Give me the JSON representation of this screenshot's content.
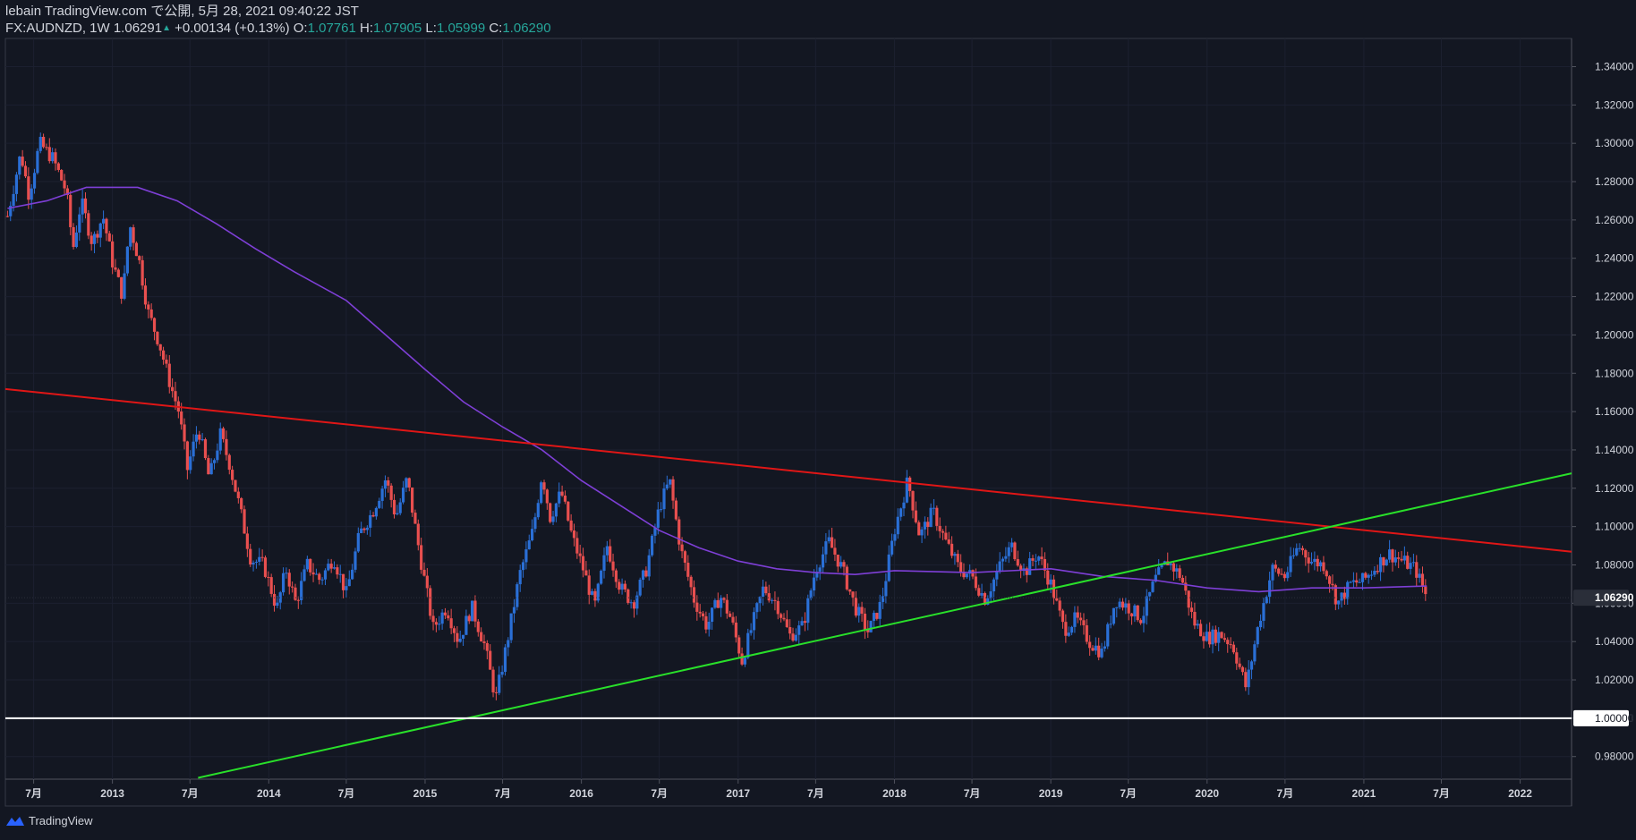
{
  "header": {
    "publish_line": "lebain TradingView.com で公開, 5月 28, 2021 09:40:22 JST",
    "symbol": "FX:AUDNZD, 1W",
    "last": "1.06291",
    "change": "+0.00134 (+0.13%)",
    "o_label": "O:",
    "o": "1.07761",
    "h_label": "H:",
    "h": "1.07905",
    "l_label": "L:",
    "l": "1.05999",
    "c_label": "C:",
    "c": "1.06290"
  },
  "footer": {
    "brand": "TradingView"
  },
  "colors": {
    "background": "#131722",
    "up": "#2a6fd6",
    "down": "#e84f4f",
    "ma": "#7e3fd6",
    "resistance": "#e01616",
    "support": "#29e02a",
    "parity": "#ffffff",
    "axis_text": "#d1d4dc",
    "border": "#363a45"
  },
  "chart_data": {
    "type": "candlestick",
    "symbol": "FX:AUDNZD",
    "timeframe": "1W",
    "y_ticks": [
      "1.34000",
      "1.32000",
      "1.30000",
      "1.28000",
      "1.26000",
      "1.24000",
      "1.22000",
      "1.20000",
      "1.18000",
      "1.16000",
      "1.14000",
      "1.12000",
      "1.10000",
      "1.08000",
      "1.06000",
      "1.04000",
      "1.02000",
      "1.00000",
      "0.98000"
    ],
    "ylim": [
      0.9682,
      1.3547
    ],
    "x_ticks": [
      {
        "label": "7月",
        "date": "2012-07"
      },
      {
        "label": "2013",
        "date": "2013-01"
      },
      {
        "label": "7月",
        "date": "2013-07"
      },
      {
        "label": "2014",
        "date": "2014-01"
      },
      {
        "label": "7月",
        "date": "2014-07"
      },
      {
        "label": "2015",
        "date": "2015-01"
      },
      {
        "label": "7月",
        "date": "2015-07"
      },
      {
        "label": "2016",
        "date": "2016-01"
      },
      {
        "label": "7月",
        "date": "2016-07"
      },
      {
        "label": "2017",
        "date": "2017-01"
      },
      {
        "label": "7月",
        "date": "2017-07"
      },
      {
        "label": "2018",
        "date": "2018-01"
      },
      {
        "label": "7月",
        "date": "2018-07"
      },
      {
        "label": "2019",
        "date": "2019-01"
      },
      {
        "label": "7月",
        "date": "2019-07"
      },
      {
        "label": "2020",
        "date": "2020-01"
      },
      {
        "label": "7月",
        "date": "2020-07"
      },
      {
        "label": "2021",
        "date": "2021-01"
      },
      {
        "label": "7月",
        "date": "2021-07"
      },
      {
        "label": "2022",
        "date": "2022-01"
      }
    ],
    "xlim": [
      "2012-04-26",
      "2022-05-01"
    ],
    "last_price_label": "1.06290",
    "last_price": 1.0629,
    "close_path": [
      [
        "2012-05-01",
        1.262
      ],
      [
        "2012-06-01",
        1.295
      ],
      [
        "2012-06-20",
        1.273
      ],
      [
        "2012-07-15",
        1.3
      ],
      [
        "2012-08-15",
        1.292
      ],
      [
        "2012-09-15",
        1.275
      ],
      [
        "2012-10-01",
        1.245
      ],
      [
        "2012-10-20",
        1.27
      ],
      [
        "2012-11-15",
        1.248
      ],
      [
        "2012-12-10",
        1.262
      ],
      [
        "2013-01-01",
        1.238
      ],
      [
        "2013-01-25",
        1.22
      ],
      [
        "2013-02-10",
        1.258
      ],
      [
        "2013-03-05",
        1.238
      ],
      [
        "2013-03-25",
        1.212
      ],
      [
        "2013-04-20",
        1.196
      ],
      [
        "2013-05-15",
        1.175
      ],
      [
        "2013-06-05",
        1.16
      ],
      [
        "2013-06-25",
        1.13
      ],
      [
        "2013-07-20",
        1.152
      ],
      [
        "2013-08-15",
        1.125
      ],
      [
        "2013-09-10",
        1.148
      ],
      [
        "2013-10-01",
        1.133
      ],
      [
        "2013-10-25",
        1.11
      ],
      [
        "2013-11-20",
        1.083
      ],
      [
        "2013-12-20",
        1.08
      ],
      [
        "2014-01-20",
        1.057
      ],
      [
        "2014-02-10",
        1.078
      ],
      [
        "2014-03-05",
        1.06
      ],
      [
        "2014-04-01",
        1.08
      ],
      [
        "2014-05-01",
        1.072
      ],
      [
        "2014-06-01",
        1.084
      ],
      [
        "2014-07-01",
        1.065
      ],
      [
        "2014-08-01",
        1.096
      ],
      [
        "2014-09-01",
        1.108
      ],
      [
        "2014-10-01",
        1.125
      ],
      [
        "2014-10-25",
        1.105
      ],
      [
        "2014-11-20",
        1.125
      ],
      [
        "2014-12-20",
        1.085
      ],
      [
        "2015-01-20",
        1.047
      ],
      [
        "2015-02-20",
        1.058
      ],
      [
        "2015-03-20",
        1.04
      ],
      [
        "2015-04-20",
        1.058
      ],
      [
        "2015-05-20",
        1.038
      ],
      [
        "2015-06-15",
        1.01
      ],
      [
        "2015-07-10",
        1.038
      ],
      [
        "2015-08-10",
        1.075
      ],
      [
        "2015-09-10",
        1.098
      ],
      [
        "2015-10-01",
        1.128
      ],
      [
        "2015-10-20",
        1.105
      ],
      [
        "2015-11-15",
        1.118
      ],
      [
        "2015-12-10",
        1.095
      ],
      [
        "2016-01-05",
        1.078
      ],
      [
        "2016-02-01",
        1.058
      ],
      [
        "2016-03-01",
        1.09
      ],
      [
        "2016-04-01",
        1.068
      ],
      [
        "2016-05-01",
        1.06
      ],
      [
        "2016-06-01",
        1.078
      ],
      [
        "2016-07-01",
        1.11
      ],
      [
        "2016-07-25",
        1.124
      ],
      [
        "2016-08-20",
        1.088
      ],
      [
        "2016-09-20",
        1.062
      ],
      [
        "2016-10-20",
        1.048
      ],
      [
        "2016-11-20",
        1.064
      ],
      [
        "2016-12-15",
        1.052
      ],
      [
        "2017-01-10",
        1.03
      ],
      [
        "2017-02-05",
        1.05
      ],
      [
        "2017-03-01",
        1.068
      ],
      [
        "2017-04-01",
        1.06
      ],
      [
        "2017-05-01",
        1.043
      ],
      [
        "2017-06-01",
        1.048
      ],
      [
        "2017-07-01",
        1.078
      ],
      [
        "2017-08-01",
        1.092
      ],
      [
        "2017-09-01",
        1.078
      ],
      [
        "2017-10-01",
        1.058
      ],
      [
        "2017-11-01",
        1.045
      ],
      [
        "2017-12-01",
        1.06
      ],
      [
        "2018-01-01",
        1.098
      ],
      [
        "2018-02-01",
        1.124
      ],
      [
        "2018-03-01",
        1.095
      ],
      [
        "2018-04-01",
        1.108
      ],
      [
        "2018-05-01",
        1.092
      ],
      [
        "2018-06-01",
        1.078
      ],
      [
        "2018-07-01",
        1.074
      ],
      [
        "2018-08-01",
        1.062
      ],
      [
        "2018-09-01",
        1.078
      ],
      [
        "2018-10-01",
        1.09
      ],
      [
        "2018-11-01",
        1.076
      ],
      [
        "2018-12-01",
        1.086
      ],
      [
        "2019-01-01",
        1.07
      ],
      [
        "2019-02-01",
        1.046
      ],
      [
        "2019-03-01",
        1.052
      ],
      [
        "2019-04-01",
        1.04
      ],
      [
        "2019-05-01",
        1.034
      ],
      [
        "2019-06-01",
        1.062
      ],
      [
        "2019-07-01",
        1.058
      ],
      [
        "2019-08-01",
        1.052
      ],
      [
        "2019-09-01",
        1.072
      ],
      [
        "2019-10-01",
        1.082
      ],
      [
        "2019-11-01",
        1.074
      ],
      [
        "2019-12-01",
        1.05
      ],
      [
        "2020-01-01",
        1.042
      ],
      [
        "2020-02-01",
        1.044
      ],
      [
        "2020-03-01",
        1.038
      ],
      [
        "2020-04-01",
        1.016
      ],
      [
        "2020-05-01",
        1.05
      ],
      [
        "2020-06-01",
        1.078
      ],
      [
        "2020-07-01",
        1.074
      ],
      [
        "2020-08-01",
        1.09
      ],
      [
        "2020-09-01",
        1.082
      ],
      [
        "2020-10-01",
        1.08
      ],
      [
        "2020-11-01",
        1.06
      ],
      [
        "2020-12-01",
        1.07
      ],
      [
        "2021-01-01",
        1.072
      ],
      [
        "2021-02-01",
        1.08
      ],
      [
        "2021-03-01",
        1.086
      ],
      [
        "2021-04-01",
        1.082
      ],
      [
        "2021-05-01",
        1.078
      ],
      [
        "2021-05-28",
        1.0629
      ]
    ],
    "moving_average": [
      [
        "2012-05-01",
        1.266
      ],
      [
        "2012-08-01",
        1.27
      ],
      [
        "2012-11-01",
        1.277
      ],
      [
        "2013-03-01",
        1.277
      ],
      [
        "2013-06-01",
        1.27
      ],
      [
        "2013-09-01",
        1.258
      ],
      [
        "2013-12-01",
        1.245
      ],
      [
        "2014-03-01",
        1.233
      ],
      [
        "2014-07-01",
        1.218
      ],
      [
        "2014-10-01",
        1.2
      ],
      [
        "2015-01-01",
        1.182
      ],
      [
        "2015-04-01",
        1.165
      ],
      [
        "2015-07-01",
        1.152
      ],
      [
        "2015-10-01",
        1.14
      ],
      [
        "2016-01-01",
        1.124
      ],
      [
        "2016-04-01",
        1.111
      ],
      [
        "2016-07-01",
        1.098
      ],
      [
        "2016-10-01",
        1.089
      ],
      [
        "2017-01-01",
        1.082
      ],
      [
        "2017-04-01",
        1.078
      ],
      [
        "2017-07-01",
        1.076
      ],
      [
        "2017-10-01",
        1.075
      ],
      [
        "2018-01-01",
        1.077
      ],
      [
        "2018-07-01",
        1.076
      ],
      [
        "2019-01-01",
        1.078
      ],
      [
        "2019-05-01",
        1.074
      ],
      [
        "2019-09-01",
        1.072
      ],
      [
        "2020-01-01",
        1.068
      ],
      [
        "2020-05-01",
        1.066
      ],
      [
        "2020-09-01",
        1.068
      ],
      [
        "2021-01-01",
        1.068
      ],
      [
        "2021-05-28",
        1.069
      ]
    ],
    "trendlines": [
      {
        "name": "resistance",
        "color": "#e01616",
        "start": [
          "2012-04-26",
          1.1718
        ],
        "end": [
          "2022-05-01",
          1.0869
        ]
      },
      {
        "name": "support",
        "color": "#29e02a",
        "start": [
          "2013-07-20",
          0.9689
        ],
        "end": [
          "2022-05-01",
          1.1278
        ]
      },
      {
        "name": "parity",
        "color": "#ffffff",
        "start": [
          "2012-04-26",
          1.0
        ],
        "end": [
          "2022-05-01",
          1.0
        ]
      }
    ]
  }
}
